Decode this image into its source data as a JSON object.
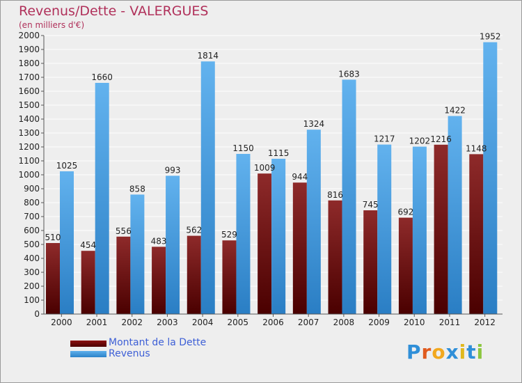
{
  "header": {
    "title": "Revenus/Dette - VALERGUES",
    "subtitle": "(en milliers d'€)"
  },
  "chart_data": {
    "type": "bar",
    "title": "Revenus/Dette - VALERGUES",
    "subtitle": "(en milliers d'€)",
    "categories": [
      "2000",
      "2001",
      "2002",
      "2003",
      "2004",
      "2005",
      "2006",
      "2007",
      "2008",
      "2009",
      "2010",
      "2011",
      "2012"
    ],
    "series": [
      {
        "name": "Montant de la Dette",
        "color": "#6e0a0a",
        "values": [
          510,
          454,
          556,
          483,
          562,
          529,
          1009,
          944,
          816,
          745,
          692,
          1216,
          1148
        ]
      },
      {
        "name": "Revenus",
        "color": "#3f97dd",
        "values": [
          1025,
          1660,
          858,
          993,
          1814,
          1150,
          1115,
          1324,
          1683,
          1217,
          1202,
          1422,
          1952
        ]
      }
    ],
    "ylim": [
      0,
      2000
    ],
    "ytick_step": 100,
    "grid": true,
    "legend_position": "bottom-left"
  },
  "legend": {
    "items": [
      {
        "label": "Montant de la Dette"
      },
      {
        "label": "Revenus"
      }
    ]
  },
  "logo": {
    "letters": [
      "P",
      "r",
      "o",
      "x",
      "i",
      "t",
      "i"
    ],
    "colors": [
      "#2f8fd8",
      "#e05a1e",
      "#f2a81e",
      "#2f8fd8",
      "#e0b81e",
      "#2f8fd8",
      "#8cc63f"
    ]
  }
}
